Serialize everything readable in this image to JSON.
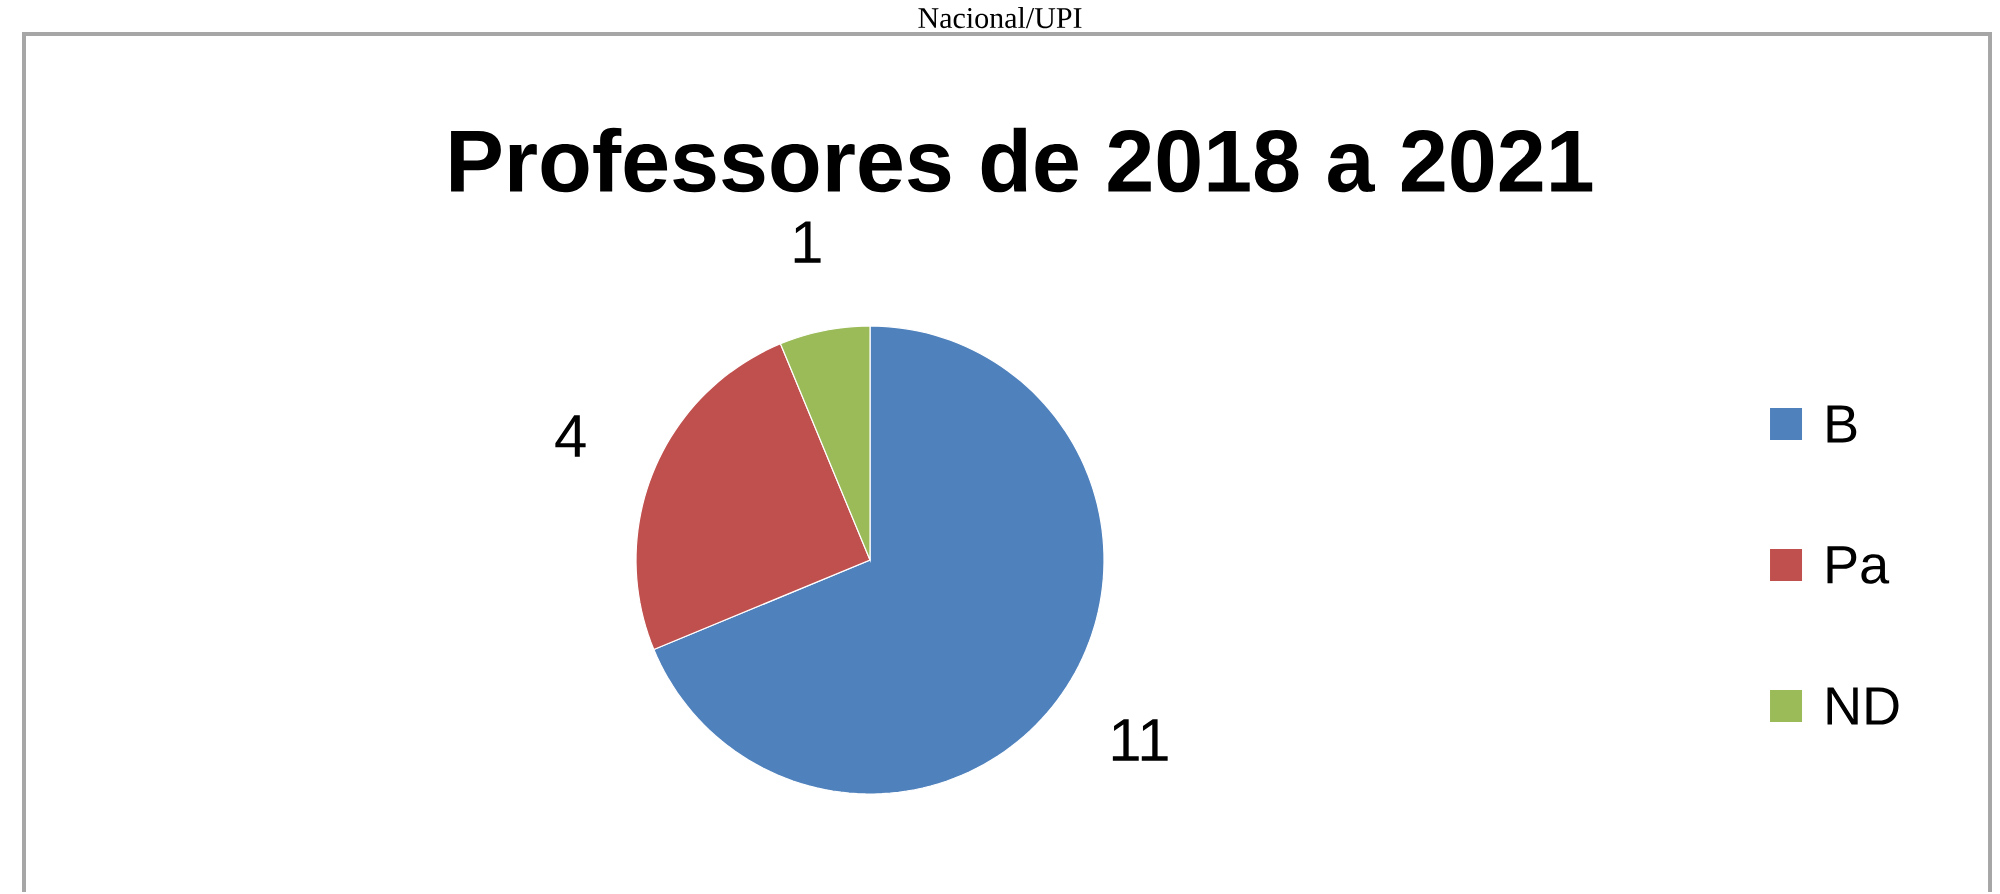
{
  "chart_data": {
    "type": "pie",
    "title": "Professores de 2018 a 2021",
    "annotations": [
      "Nacional/UPI"
    ],
    "categories": [
      "B",
      "Pa",
      "ND"
    ],
    "values": [
      11,
      4,
      1
    ],
    "colors": [
      "#4f81bd",
      "#c0504d",
      "#9bbb59"
    ],
    "data_labels": true,
    "legend": "right"
  }
}
